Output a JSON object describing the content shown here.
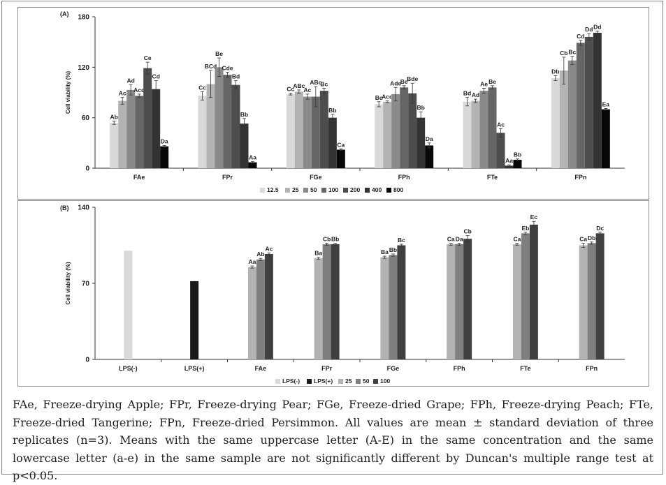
{
  "caption": "FAe, Freeze-drying Apple; FPr, Freeze-drying Pear; FGe, Freeze-dried Grape; FPh, Freeze-drying Peach; FTe, Freeze-dried Tangerine; FPn, Freeze-dried Persimmon. All values are mean ± standard deviation of three replicates (n=3). Means with the same uppercase letter (A-E) in the same concentration and the same lowercase letter (a-e) in the same sample are not significantly different by Duncan's multiple range test at p<0.05.",
  "chart_data": [
    {
      "type": "bar",
      "panel_label": "(A)",
      "ylabel": "Cell viability (%)",
      "ylim": [
        0,
        180
      ],
      "yticks": [
        0,
        60,
        120,
        180
      ],
      "categories": [
        "FAe",
        "FPr",
        "FGe",
        "FPh",
        "FTe",
        "FPn"
      ],
      "legend_position": "bottom",
      "series": [
        {
          "name": "12.5",
          "color": "#d9d9d9",
          "values": [
            54,
            86,
            88,
            76,
            79,
            107
          ],
          "errors": [
            2,
            5,
            1,
            3,
            5,
            3
          ],
          "labels": [
            "Ab",
            "Cc",
            "Cc",
            "Bc",
            "Bd",
            "Db"
          ]
        },
        {
          "name": "25",
          "color": "#b3b3b3",
          "values": [
            80,
            100,
            91,
            79,
            80,
            116
          ],
          "errors": [
            4,
            16,
            2,
            1,
            2,
            16
          ],
          "labels": [
            "Ac",
            "BCd",
            "ABc",
            "Acd",
            "Ad",
            "Cb"
          ]
        },
        {
          "name": "50",
          "color": "#8a8a8a",
          "values": [
            93,
            120,
            85,
            88,
            92,
            128
          ],
          "errors": [
            6,
            11,
            3,
            8,
            3,
            5
          ],
          "labels": [
            "Ad",
            "Be",
            "Ac",
            "Ade",
            "Ae",
            "Bc"
          ]
        },
        {
          "name": "100",
          "color": "#666666",
          "values": [
            86,
            111,
            85,
            96,
            96,
            149
          ],
          "errors": [
            2,
            3,
            12,
            2,
            2,
            3
          ],
          "labels": [
            "Acd",
            "Cde",
            "ABc",
            "Be",
            "Be",
            "Cd"
          ]
        },
        {
          "name": "200",
          "color": "#4d4d4d",
          "values": [
            119,
            99,
            92,
            89,
            42,
            156
          ],
          "errors": [
            7,
            5,
            3,
            12,
            5,
            4
          ],
          "labels": [
            "Ce",
            "Bd",
            "Bc",
            "Bde",
            "Ac",
            "Dd"
          ]
        },
        {
          "name": "400",
          "color": "#333333",
          "values": [
            94,
            53,
            60,
            60,
            3,
            161
          ],
          "errors": [
            10,
            6,
            4,
            7,
            1,
            2
          ],
          "labels": [
            "Cd",
            "Bb",
            "Bb",
            "Bb",
            "Aa",
            "Dd"
          ]
        },
        {
          "name": "800",
          "color": "#080808",
          "values": [
            26,
            7,
            22,
            27,
            10,
            70
          ],
          "errors": [
            1,
            1,
            1,
            3,
            1,
            1
          ],
          "labels": [
            "Da",
            "Aa",
            "Ca",
            "Da",
            "Bb",
            "Ea"
          ]
        }
      ]
    },
    {
      "type": "bar",
      "panel_label": "(B)",
      "ylabel": "Cell viability (%)",
      "ylim": [
        0,
        140
      ],
      "yticks": [
        0,
        70,
        140
      ],
      "categories": [
        "LPS(-)",
        "LPS(+)",
        "FAe",
        "FPr",
        "FGe",
        "FPh",
        "FTe",
        "FPn"
      ],
      "legend_position": "bottom",
      "series": [
        {
          "name": "LPS(-)",
          "color": "#dadada",
          "values": [
            100,
            null,
            null,
            null,
            null,
            null,
            null,
            null
          ],
          "errors": [
            0,
            0,
            0,
            0,
            0,
            0,
            0,
            0
          ],
          "labels": [
            "",
            "",
            "",
            "",
            "",
            "",
            "",
            ""
          ]
        },
        {
          "name": "LPS(+)",
          "color": "#1a1a1a",
          "values": [
            null,
            72,
            null,
            null,
            null,
            null,
            null,
            null
          ],
          "errors": [
            0,
            0,
            0,
            0,
            0,
            0,
            0,
            0
          ],
          "labels": [
            "",
            "",
            "",
            "",
            "",
            "",
            "",
            ""
          ]
        },
        {
          "name": "25",
          "color": "#b3b3b3",
          "values": [
            null,
            null,
            85,
            93,
            94,
            106,
            106,
            105
          ],
          "errors": [
            0,
            0,
            1,
            1,
            1,
            1,
            1,
            2
          ],
          "labels": [
            "",
            "",
            "Aa",
            "Ba",
            "Ba",
            "Ca",
            "Ca",
            "Ca"
          ]
        },
        {
          "name": "50",
          "color": "#7f7f7f",
          "values": [
            null,
            null,
            92,
            106,
            96,
            106,
            116,
            107
          ],
          "errors": [
            0,
            0,
            1,
            1,
            1,
            1,
            1,
            1
          ],
          "labels": [
            "",
            "",
            "Ab",
            "Cb",
            "Bb",
            "Da",
            "Eb",
            "Db"
          ]
        },
        {
          "name": "100",
          "color": "#404040",
          "values": [
            null,
            null,
            97,
            106,
            105,
            111,
            124,
            116
          ],
          "errors": [
            0,
            0,
            1,
            1,
            1,
            3,
            3,
            1
          ],
          "labels": [
            "",
            "",
            "Ac",
            "Bb",
            "Bc",
            "Cb",
            "Ec",
            "Dc"
          ]
        }
      ]
    }
  ]
}
